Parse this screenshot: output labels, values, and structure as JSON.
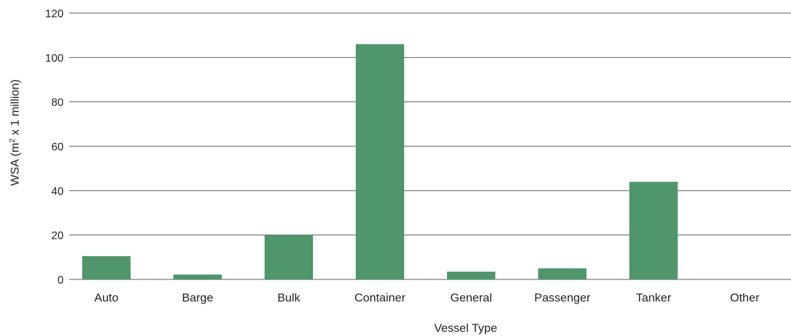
{
  "chart_data": {
    "type": "bar",
    "categories": [
      "Auto",
      "Barge",
      "Bulk",
      "Container",
      "General",
      "Passenger",
      "Tanker",
      "Other"
    ],
    "values": [
      10.5,
      2.2,
      20,
      106,
      3.5,
      5,
      44,
      0
    ],
    "xlabel": "Vessel Type",
    "ylabel": "WSA (m",
    "ylabel_superscript": "2",
    "ylabel_suffix": " x 1 million)",
    "ylim": [
      0,
      120
    ],
    "yticks": [
      0,
      20,
      40,
      60,
      80,
      100,
      120
    ],
    "grid": true,
    "bar_color": "#4f966a"
  }
}
